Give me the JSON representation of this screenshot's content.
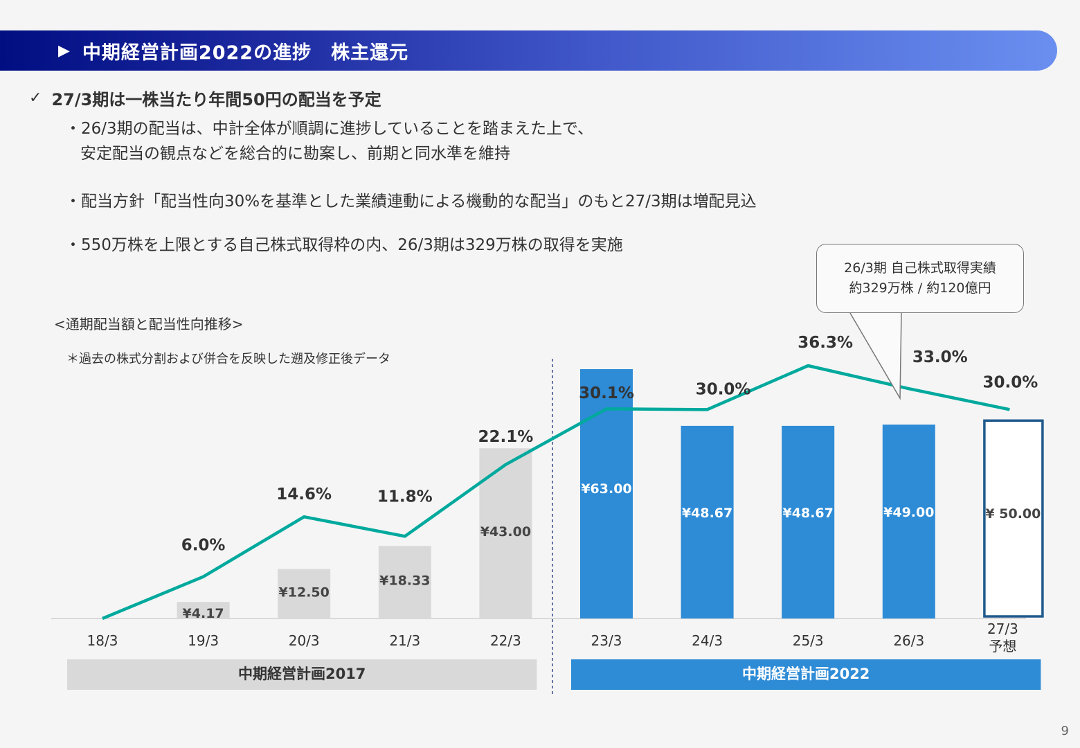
{
  "header": {
    "title": "中期経営計画2022の進捗　株主還元"
  },
  "headline": "27/3期は一株当たり年間50円の配当を予定",
  "bullets": [
    {
      "line1": "・26/3期の配当は、中計全体が順調に進捗していることを踏まえた上で、",
      "line2": "安定配当の観点などを総合的に勘案し、前期と同水準を維持"
    },
    {
      "line1": "・配当方針「配当性向30%を基準とした業績連動による機動的な配当」のもと27/3期は増配見込"
    },
    {
      "line1": "・550万株を上限とする自己株式取得枠の内、26/3期は329万株の取得を実施"
    }
  ],
  "callout": {
    "line1": "26/3期 自己株式取得実績",
    "line2": "約329万株 / 約120億円"
  },
  "chart_caption": "<通期配当額と配当性向推移>",
  "chart_note": "＊過去の株式分割および併合を反映した遡及修正後データ",
  "page_number": "9",
  "colors": {
    "bar_2017": "#d9d9d9",
    "bar_2022": "#2e8bd6",
    "forecast_border": "#1f5a8c",
    "line": "#00a99d",
    "plan_2017": "#d9d9d9",
    "plan_2022": "#2e8bd6"
  },
  "chart_data": {
    "type": "bar",
    "categories": [
      "18/3",
      "19/3",
      "20/3",
      "21/3",
      "22/3",
      "23/3",
      "24/3",
      "25/3",
      "26/3",
      "27/3\n予想"
    ],
    "series": [
      {
        "values": [
          null,
          4.17,
          12.5,
          18.33,
          43.0,
          63.0,
          48.67,
          48.67,
          49.0,
          50.0
        ],
        "labels": [
          "",
          "¥4.17",
          "¥12.50",
          "¥18.33",
          "¥43.00",
          "¥63.00",
          "¥48.67",
          "¥48.67",
          "¥49.00",
          "¥ 50.00"
        ]
      },
      {
        "type": "line",
        "values": [
          0.0,
          6.0,
          14.6,
          11.8,
          22.1,
          30.1,
          30.0,
          36.3,
          33.0,
          30.0
        ],
        "labels": [
          "",
          "6.0%",
          "14.6%",
          "11.8%",
          "22.1%",
          "30.1%",
          "30.0%",
          "36.3%",
          "33.0%",
          "30.0%"
        ]
      }
    ],
    "forecast_index": 9,
    "plans": [
      {
        "label": "中期経営計画2017",
        "from": 0,
        "to": 4
      },
      {
        "label": "中期経営計画2022",
        "from": 5,
        "to": 9
      }
    ],
    "bar_ylim": [
      0,
      63
    ],
    "line_ylim": [
      0,
      36.3
    ]
  }
}
